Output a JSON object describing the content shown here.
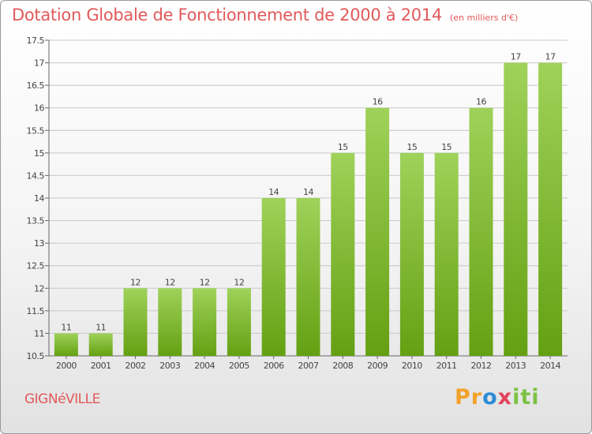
{
  "header": {
    "title": "Dotation Globale de Fonctionnement de 2000 à 2014",
    "unit": "(en milliers d'€)"
  },
  "footer": {
    "commune": "GIGNéVILLE",
    "logo": [
      "Pr",
      "o",
      "x",
      "iti"
    ]
  },
  "colors": {
    "bar_top": "#9fd25a",
    "bar_bottom": "#64a012",
    "grid": "#c8c8c8",
    "title": "#e2595a"
  },
  "chart_data": {
    "type": "bar",
    "categories": [
      "2000",
      "2001",
      "2002",
      "2003",
      "2004",
      "2005",
      "2006",
      "2007",
      "2008",
      "2009",
      "2010",
      "2011",
      "2012",
      "2013",
      "2014"
    ],
    "values": [
      11,
      11,
      12,
      12,
      12,
      12,
      14,
      14,
      15,
      16,
      15,
      15,
      16,
      17,
      17
    ],
    "labels": [
      "11",
      "11",
      "12",
      "12",
      "12",
      "12",
      "14",
      "14",
      "15",
      "16",
      "15",
      "15",
      "16",
      "17",
      "17"
    ],
    "ylim": [
      10.5,
      17.5
    ],
    "yticks": [
      "10.5",
      "11",
      "11.5",
      "12",
      "12.5",
      "13",
      "13.5",
      "14",
      "14.5",
      "15",
      "15.5",
      "16",
      "16.5",
      "17",
      "17.5"
    ],
    "title": "Dotation Globale de Fonctionnement de 2000 à 2014",
    "xlabel": "",
    "ylabel": "",
    "grid": true,
    "legend": "none"
  }
}
